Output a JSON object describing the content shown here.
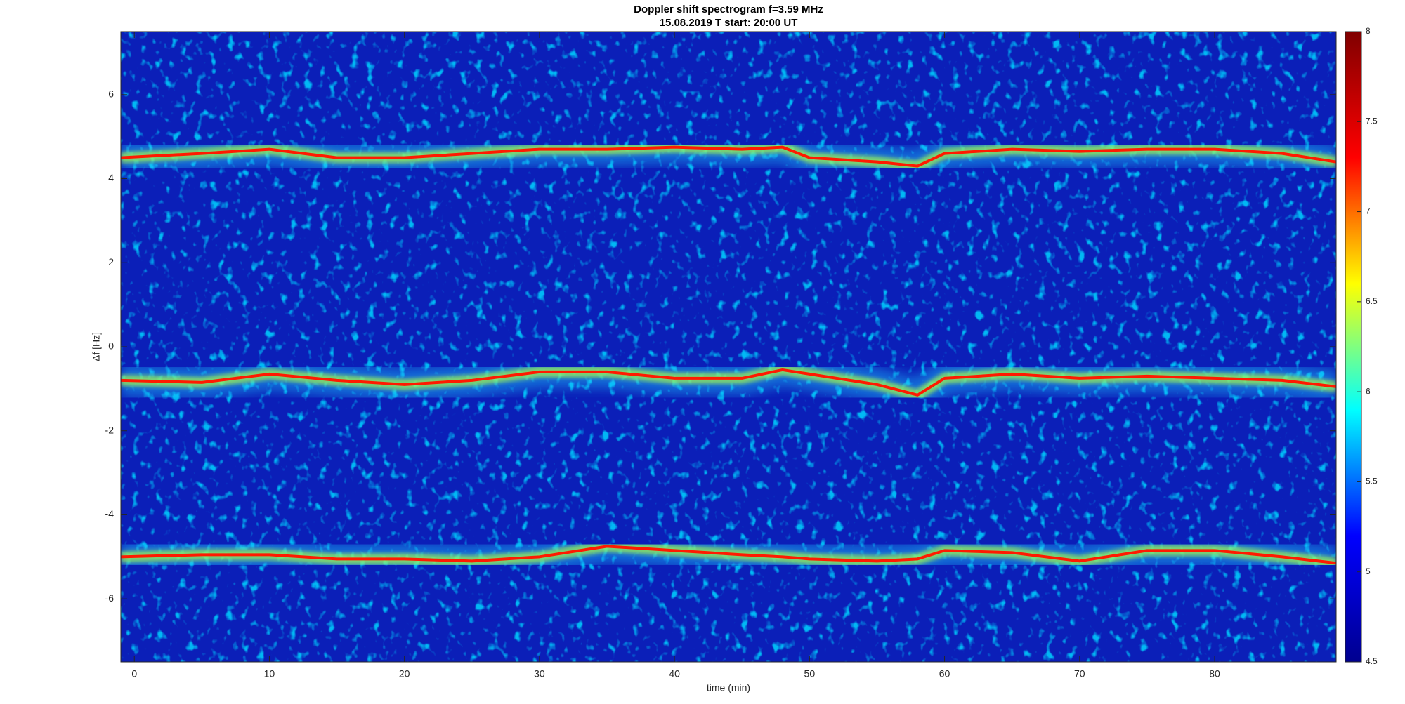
{
  "chart_data": {
    "type": "spectrogram",
    "title": "Doppler shift spectrogram f=3.59 MHz",
    "subtitle": "15.08.2019    T start: 20:00 UT",
    "x_label": "time (min)",
    "y_label": "Δf [Hz]",
    "xlim": [
      -1,
      89
    ],
    "xticks": [
      0,
      10,
      20,
      30,
      40,
      50,
      60,
      70,
      80
    ],
    "ylim": [
      -7.5,
      7.5
    ],
    "yticks": [
      -6,
      -4,
      -2,
      0,
      2,
      4,
      6
    ],
    "clim": [
      4.5,
      8
    ],
    "cticks": [
      4.5,
      5,
      5.5,
      6,
      6.5,
      7,
      7.5,
      8
    ],
    "colormap": "jet",
    "x": [
      -1,
      5,
      10,
      15,
      20,
      25,
      30,
      35,
      40,
      45,
      48,
      50,
      55,
      58,
      60,
      65,
      70,
      75,
      80,
      85,
      89
    ],
    "series": [
      {
        "color": "#ff1a00",
        "values": [
          4.5,
          4.6,
          4.7,
          4.5,
          4.5,
          4.6,
          4.7,
          4.7,
          4.75,
          4.7,
          4.75,
          4.5,
          4.4,
          4.3,
          4.6,
          4.7,
          4.65,
          4.7,
          4.7,
          4.6,
          4.4
        ]
      },
      {
        "color": "#ff1a00",
        "values": [
          -0.8,
          -0.85,
          -0.65,
          -0.8,
          -0.9,
          -0.8,
          -0.6,
          -0.6,
          -0.75,
          -0.75,
          -0.55,
          -0.65,
          -0.9,
          -1.15,
          -0.75,
          -0.65,
          -0.75,
          -0.7,
          -0.75,
          -0.8,
          -0.95
        ]
      },
      {
        "color": "#ff1a00",
        "values": [
          -5.0,
          -4.95,
          -4.95,
          -5.05,
          -5.05,
          -5.1,
          -5.0,
          -4.75,
          -4.85,
          -4.95,
          -5.0,
          -5.05,
          -5.1,
          -5.05,
          -4.85,
          -4.9,
          -5.1,
          -4.85,
          -4.85,
          -5.0,
          -5.15
        ]
      }
    ]
  }
}
